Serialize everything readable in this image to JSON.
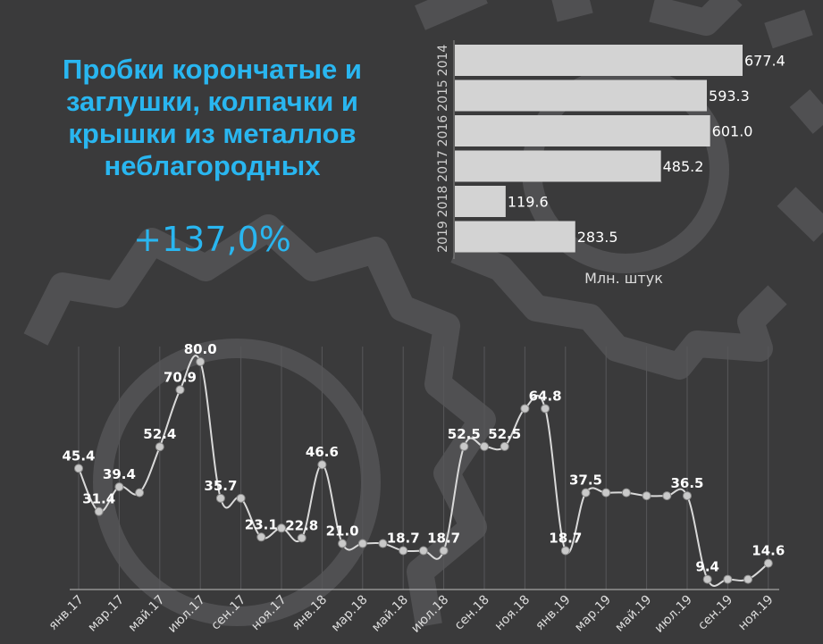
{
  "title": "Пробки корончатые и заглушки, колпачки и крышки из металлов неблагородных",
  "growth": "+137,0%",
  "colors": {
    "background": "#3a3a3b",
    "title": "#29b6f0",
    "bar": "#d3d3d3",
    "line": "#d9d9d9",
    "text": "#ffffff",
    "gear": "#505052"
  },
  "chart_data": [
    {
      "type": "bar",
      "orientation": "horizontal",
      "categories": [
        "2014",
        "2015",
        "2016",
        "2017",
        "2018",
        "2019"
      ],
      "values": [
        677.4,
        593.3,
        601.0,
        485.2,
        119.6,
        283.5
      ],
      "value_labels": [
        "677.4",
        "593.3",
        "601.0",
        "485.2",
        "119.6",
        "283.5"
      ],
      "xlabel": "Млн. штук",
      "xlim": [
        0,
        677.4
      ]
    },
    {
      "type": "line",
      "x": [
        "янв.17",
        "фев.17",
        "мар.17",
        "апр.17",
        "май.17",
        "июн.17",
        "июл.17",
        "авг.17",
        "сен.17",
        "окт.17",
        "ноя.17",
        "дек.17",
        "янв.18",
        "фев.18",
        "мар.18",
        "апр.18",
        "май.18",
        "июн.18",
        "июл.18",
        "авг.18",
        "сен.18",
        "окт.18",
        "ноя.18",
        "дек.18",
        "янв.19",
        "фев.19",
        "мар.19",
        "апр.19",
        "май.19",
        "июн.19",
        "июл.19",
        "авг.19",
        "сен.19",
        "окт.19",
        "ноя.19"
      ],
      "values": [
        45.4,
        31.4,
        39.4,
        37.5,
        52.4,
        70.9,
        80.0,
        35.7,
        35.7,
        23.1,
        26.0,
        22.8,
        46.6,
        21.0,
        21.0,
        21.0,
        18.7,
        18.7,
        18.7,
        52.5,
        52.5,
        52.5,
        64.8,
        64.8,
        18.7,
        37.5,
        37.5,
        37.5,
        36.5,
        36.5,
        36.5,
        9.4,
        9.4,
        9.4,
        14.6
      ],
      "point_labels": [
        "45.4",
        "31.4",
        "39.4",
        "",
        "52.4",
        "70.9",
        "80.0",
        "35.7",
        "",
        "23.1",
        "",
        "22.8",
        "46.6",
        "21.0",
        "",
        "",
        "18.7",
        "",
        "18.7",
        "52.5",
        "",
        "52.5",
        "",
        "64.8",
        "18.7",
        "37.5",
        "",
        "",
        "",
        "",
        "36.5",
        "9.4",
        "",
        "",
        "14.6"
      ],
      "tick_labels": [
        "янв.17",
        "мар.17",
        "май.17",
        "июл.17",
        "сен.17",
        "ноя.17",
        "янв.18",
        "мар.18",
        "май.18",
        "июл.18",
        "сен.18",
        "ноя.18",
        "янв.19",
        "мар.19",
        "май.19",
        "июл.19",
        "сен.19",
        "ноя.19"
      ],
      "grid": true,
      "ylim": [
        0,
        90
      ]
    }
  ]
}
